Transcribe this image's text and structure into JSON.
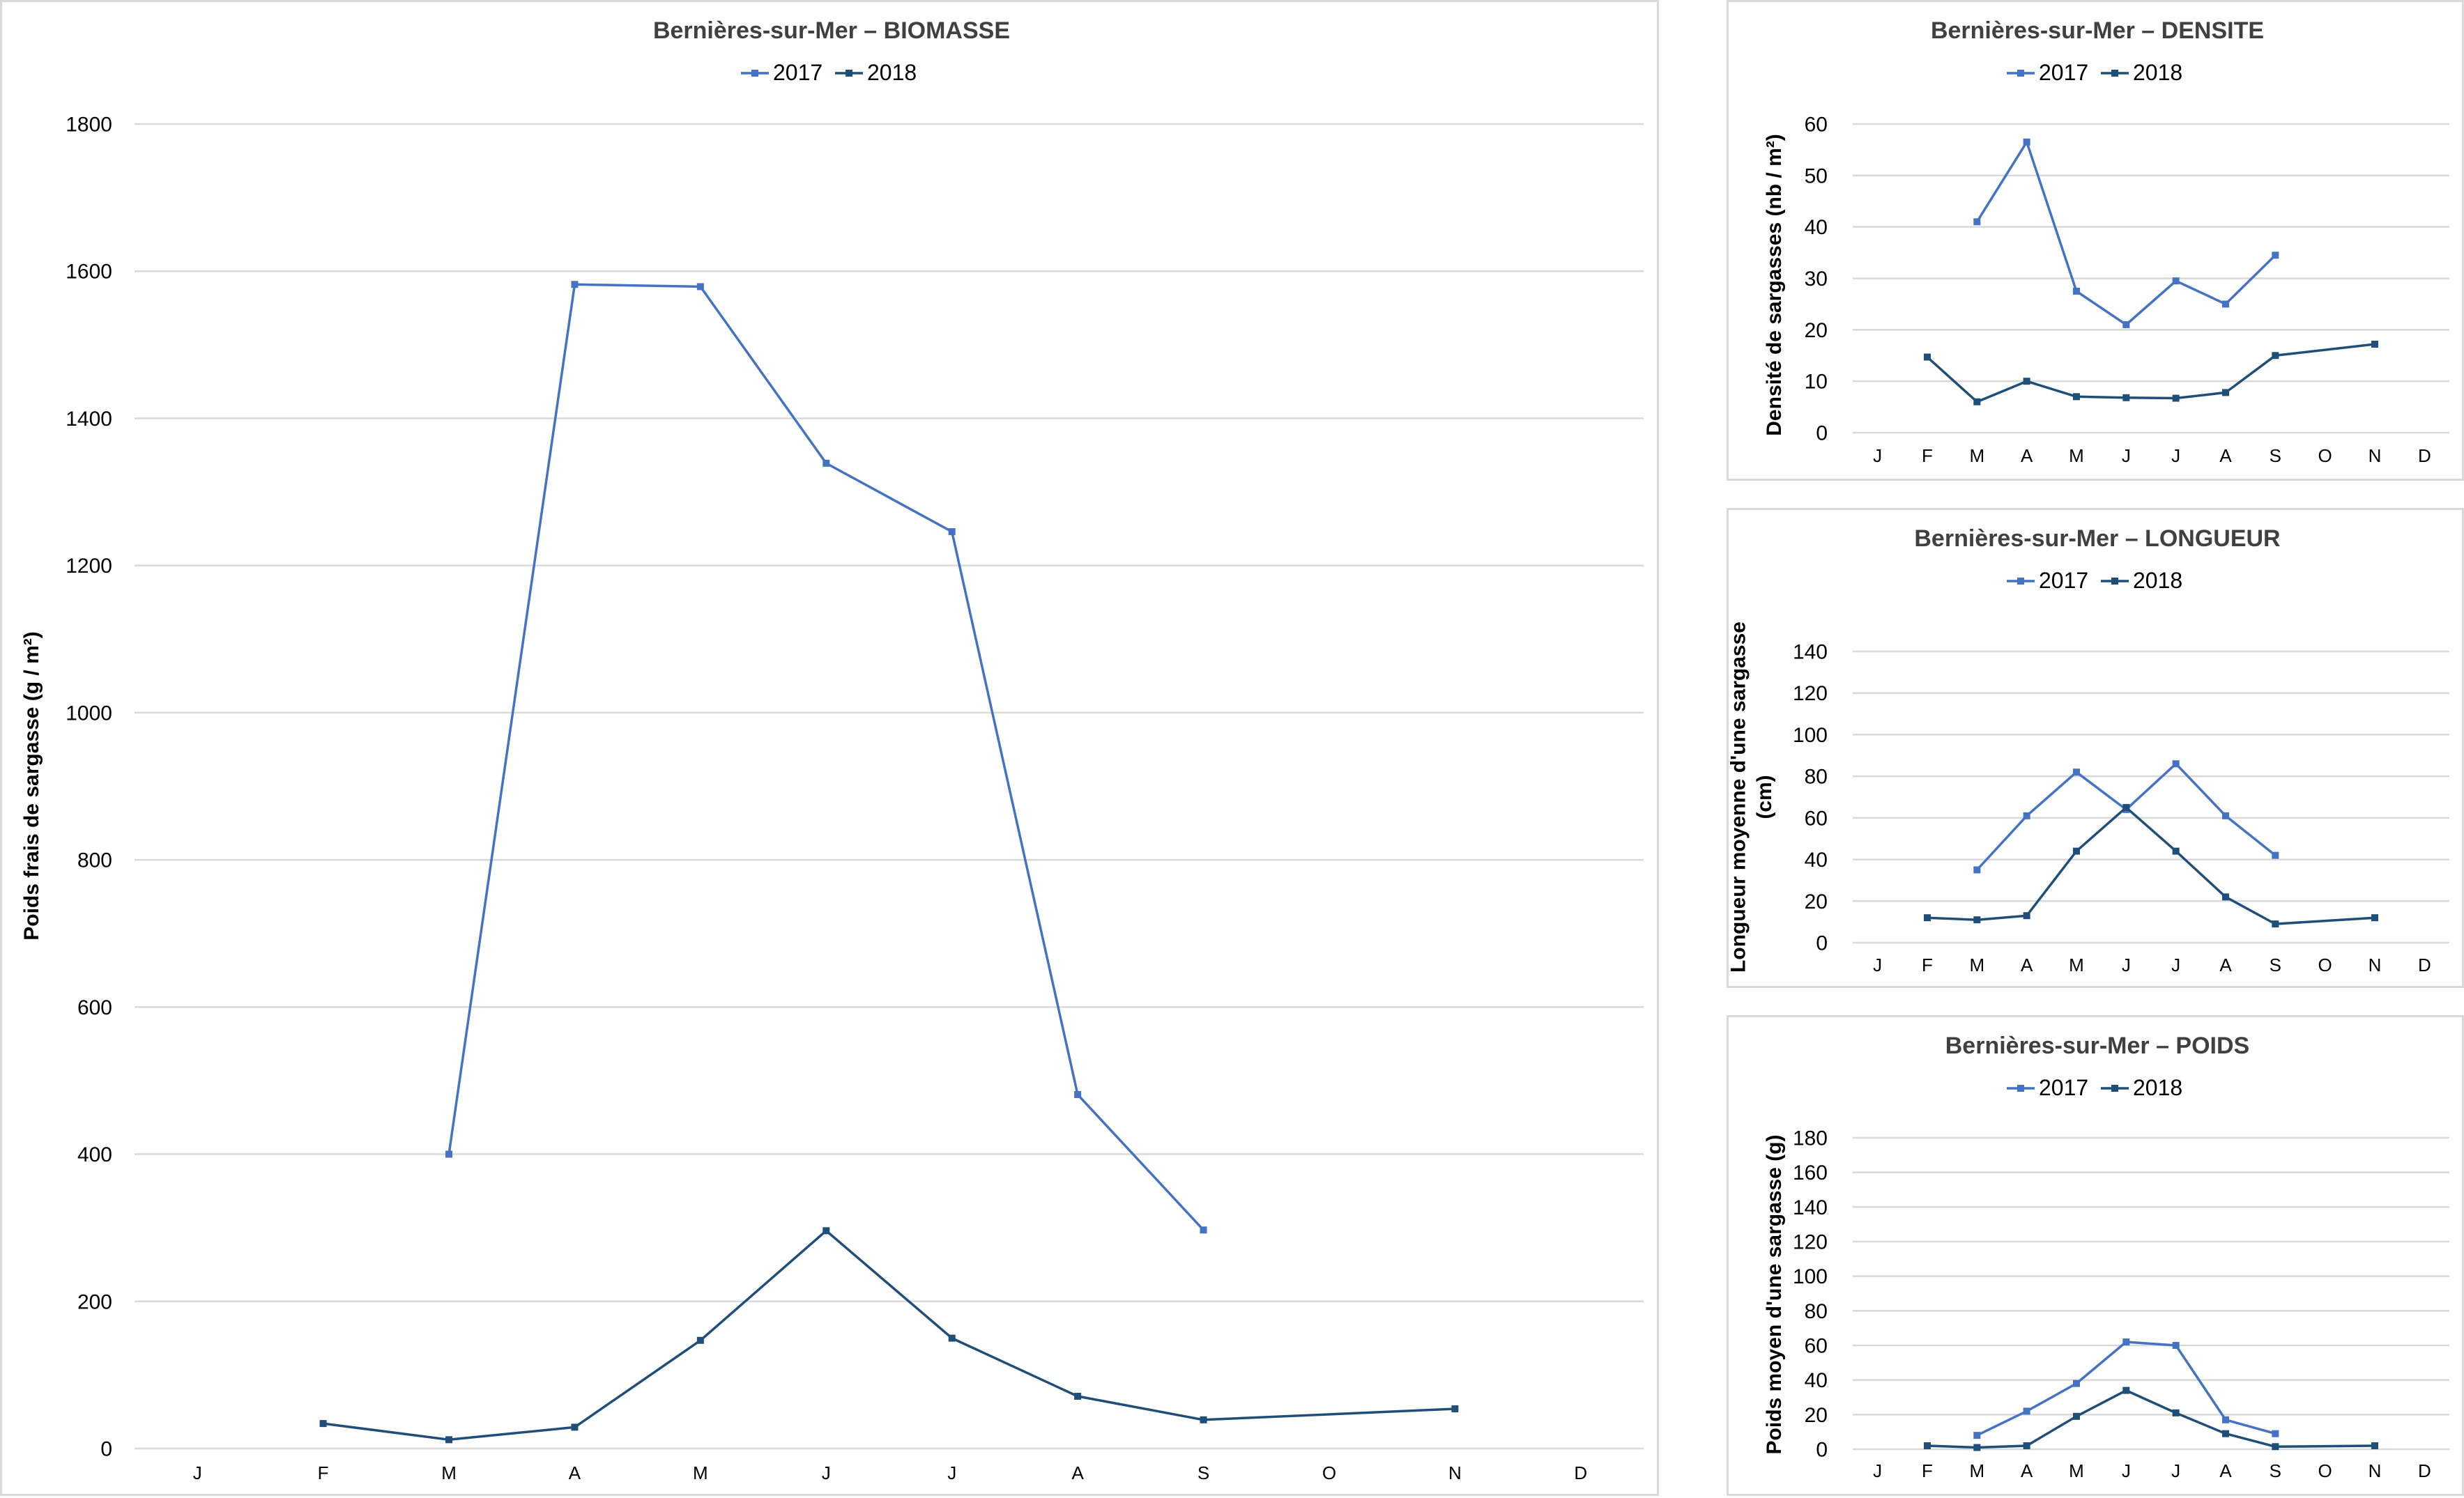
{
  "chart_data": [
    {
      "id": "biomasse",
      "type": "line",
      "title": "Bernières-sur-Mer  –  BIOMASSE",
      "ylabel_lines": [
        "Poids frais de sargasse (g / m²)"
      ],
      "xlabel": "",
      "categories": [
        "J",
        "F",
        "M",
        "A",
        "M",
        "J",
        "J",
        "A",
        "S",
        "O",
        "N",
        "D"
      ],
      "ylim": [
        0,
        1800
      ],
      "yticks": [
        0,
        200,
        400,
        600,
        800,
        1000,
        1200,
        1400,
        1600,
        1800
      ],
      "grid": true,
      "legend": "top-center",
      "series": [
        {
          "name": "2017",
          "color": "#4472c4",
          "values": [
            null,
            null,
            400,
            1582,
            1579,
            1339,
            1246,
            481,
            297,
            null,
            null,
            null
          ]
        },
        {
          "name": "2018",
          "color": "#1f4e79",
          "values": [
            null,
            34,
            12,
            29,
            147,
            296,
            150,
            71,
            39,
            null,
            54,
            null
          ]
        }
      ]
    },
    {
      "id": "densite",
      "type": "line",
      "title": "Bernières-sur-Mer  –  DENSITE",
      "ylabel_lines": [
        "Densité de sargasses (nb / m²)"
      ],
      "xlabel": "",
      "categories": [
        "J",
        "F",
        "M",
        "A",
        "M",
        "J",
        "J",
        "A",
        "S",
        "O",
        "N",
        "D"
      ],
      "ylim": [
        0,
        60
      ],
      "yticks": [
        0,
        10,
        20,
        30,
        40,
        50,
        60
      ],
      "grid": true,
      "legend": "top-center",
      "series": [
        {
          "name": "2017",
          "color": "#4472c4",
          "values": [
            null,
            null,
            41,
            56.5,
            27.5,
            21,
            29.5,
            25,
            34.5,
            null,
            null,
            null
          ]
        },
        {
          "name": "2018",
          "color": "#1f4e79",
          "values": [
            null,
            14.7,
            6,
            10,
            7,
            6.8,
            6.7,
            7.8,
            15,
            null,
            17.2,
            null
          ]
        }
      ]
    },
    {
      "id": "longueur",
      "type": "line",
      "title": "Bernières-sur-Mer  –  LONGUEUR",
      "ylabel_lines": [
        "Longueur moyenne d'une sargasse",
        "(cm)"
      ],
      "xlabel": "",
      "categories": [
        "J",
        "F",
        "M",
        "A",
        "M",
        "J",
        "J",
        "A",
        "S",
        "O",
        "N",
        "D"
      ],
      "ylim": [
        0,
        140
      ],
      "yticks": [
        0,
        20,
        40,
        60,
        80,
        100,
        120,
        140
      ],
      "grid": true,
      "legend": "top-center",
      "series": [
        {
          "name": "2017",
          "color": "#4472c4",
          "values": [
            null,
            null,
            35,
            61,
            82,
            64,
            86,
            61,
            42,
            null,
            null,
            null
          ]
        },
        {
          "name": "2018",
          "color": "#1f4e79",
          "values": [
            null,
            12,
            11,
            13,
            44,
            65,
            44,
            22,
            9,
            null,
            12,
            null
          ]
        }
      ]
    },
    {
      "id": "poids",
      "type": "line",
      "title": "Bernières-sur-Mer  –  POIDS",
      "ylabel_lines": [
        "Poids moyen d'une sargasse (g)"
      ],
      "xlabel": "",
      "categories": [
        "J",
        "F",
        "M",
        "A",
        "M",
        "J",
        "J",
        "A",
        "S",
        "O",
        "N",
        "D"
      ],
      "ylim": [
        0,
        180
      ],
      "yticks": [
        0,
        20,
        40,
        60,
        80,
        100,
        120,
        140,
        160,
        180
      ],
      "grid": true,
      "legend": "top-center",
      "series": [
        {
          "name": "2017",
          "color": "#4472c4",
          "values": [
            null,
            null,
            8,
            22,
            38,
            62,
            60,
            17,
            9,
            null,
            null,
            null
          ]
        },
        {
          "name": "2018",
          "color": "#1f4e79",
          "values": [
            null,
            2,
            1,
            2,
            19,
            34,
            21,
            9,
            1.5,
            null,
            2,
            null
          ]
        }
      ]
    }
  ]
}
